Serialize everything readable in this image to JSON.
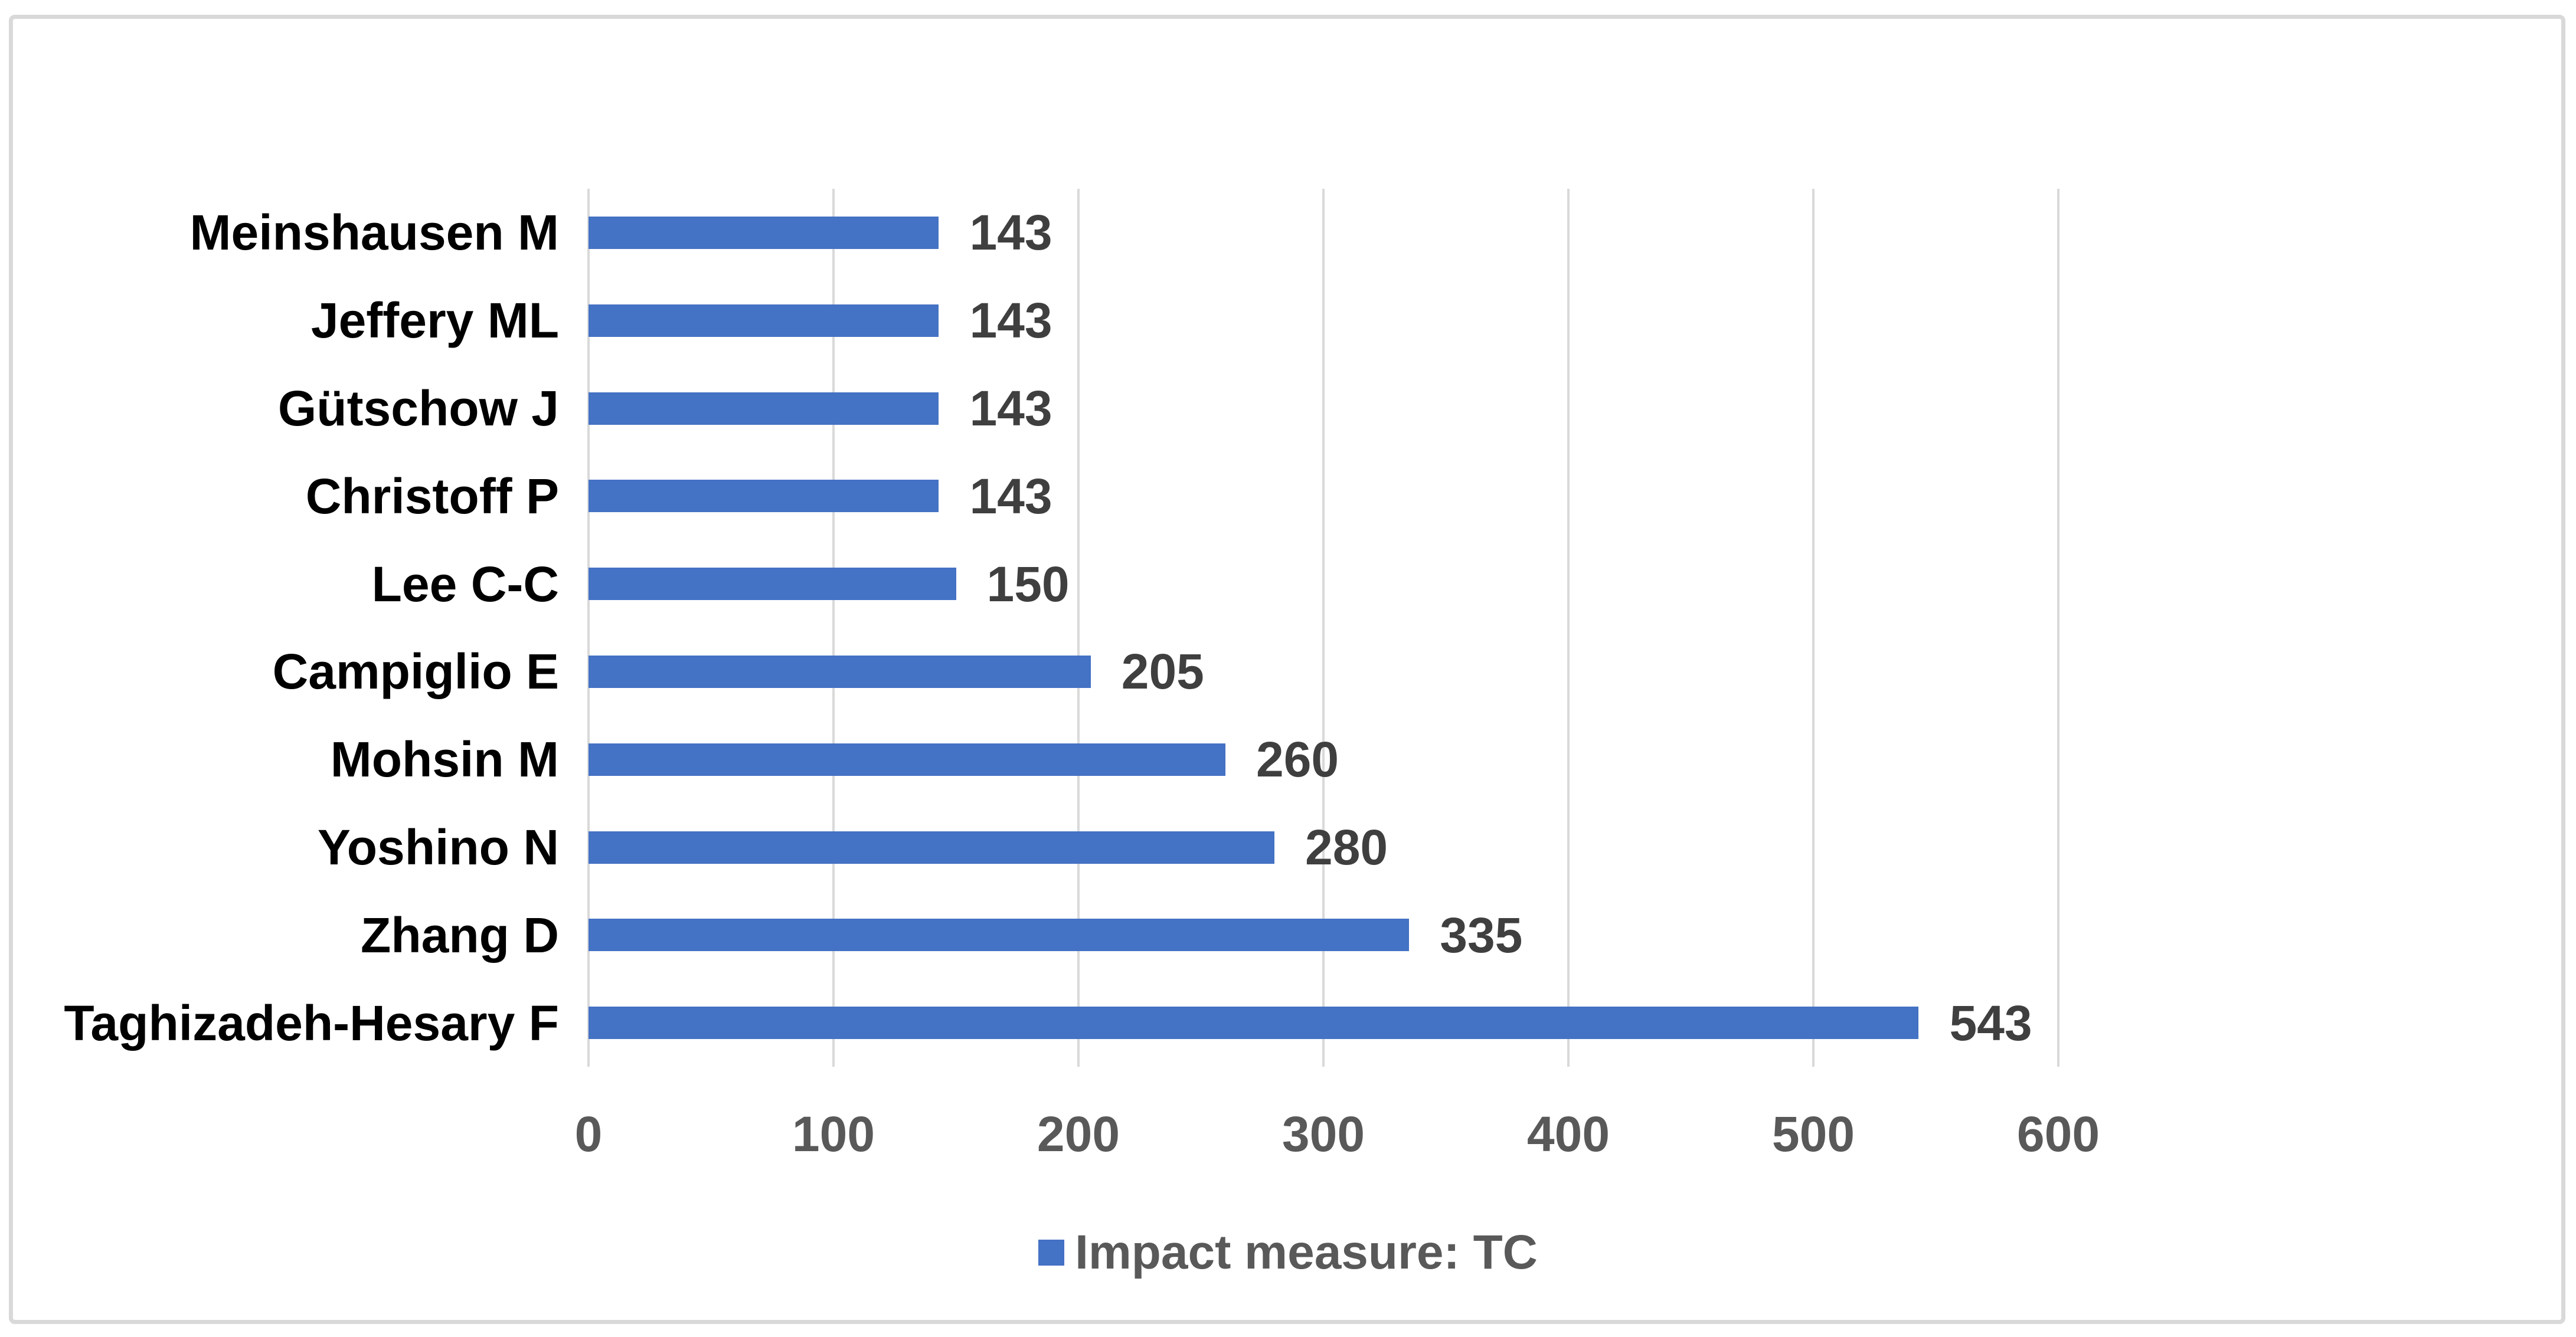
{
  "figure": {
    "background_color": "#ffffff",
    "border_color": "#d9d9d9",
    "title": ""
  },
  "chart_data": {
    "type": "bar",
    "orientation": "horizontal",
    "title": "",
    "xlabel": "",
    "ylabel": "",
    "categories_top_to_bottom": [
      "Meinshausen M",
      "Jeffery ML",
      "Gütschow J",
      "Christoff P",
      "Lee C-C",
      "Campiglio E",
      "Mohsin M",
      "Yoshino N",
      "Zhang D",
      "Taghizadeh-Hesary F"
    ],
    "values": [
      143,
      143,
      143,
      143,
      150,
      205,
      260,
      280,
      335,
      543
    ],
    "data_labels": [
      "143",
      "143",
      "143",
      "143",
      "150",
      "205",
      "260",
      "280",
      "335",
      "543"
    ],
    "xlim": [
      0,
      600
    ],
    "xticks": [
      0,
      100,
      200,
      300,
      400,
      500,
      600
    ],
    "xtick_labels": [
      "0",
      "100",
      "200",
      "300",
      "400",
      "500",
      "600"
    ],
    "grid": "vertical",
    "gridline_color": "#d9d9d9",
    "bar_color": "#4472c4",
    "category_label_color": "#000000",
    "data_label_color": "#3f3f3f",
    "tick_label_color": "#595959",
    "legend": {
      "label": "Impact measure: TC",
      "position": "bottom-center",
      "marker_color": "#4472c4",
      "text_color": "#595959"
    }
  }
}
